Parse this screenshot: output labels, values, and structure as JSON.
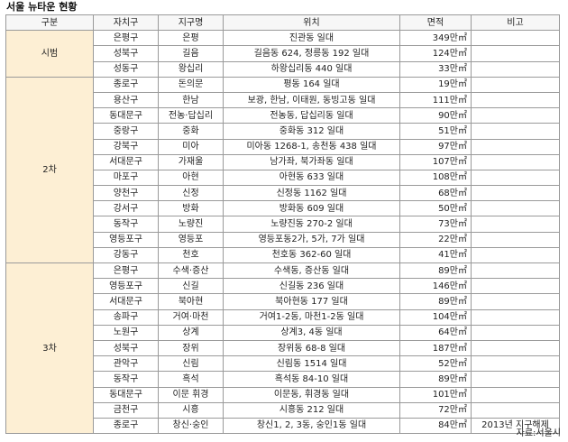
{
  "title": "서울 뉴타운 현황",
  "headers": [
    "구분",
    "자치구",
    "지구명",
    "위치",
    "면적",
    "비고"
  ],
  "groups": [
    {
      "label": "시범",
      "rows": [
        {
          "gu": "은평구",
          "district": "은평",
          "location": "진관동 일대",
          "area": "349만㎡",
          "note": ""
        },
        {
          "gu": "성북구",
          "district": "길음",
          "location": "길음동 624, 정릉동 192 일대",
          "area": "124만㎡",
          "note": ""
        },
        {
          "gu": "성동구",
          "district": "왕십리",
          "location": "하왕십리동 440 일대",
          "area": "33만㎡",
          "note": ""
        }
      ]
    },
    {
      "label": "2차",
      "rows": [
        {
          "gu": "종로구",
          "district": "돈의문",
          "location": "평동 164 일대",
          "area": "19만㎡",
          "note": ""
        },
        {
          "gu": "용산구",
          "district": "한남",
          "location": "보광, 한남, 이태원, 동빙고동 일대",
          "area": "111만㎡",
          "note": ""
        },
        {
          "gu": "동대문구",
          "district": "전농·답십리",
          "location": "전농동, 답십리동 일대",
          "area": "90만㎡",
          "note": ""
        },
        {
          "gu": "중랑구",
          "district": "중화",
          "location": "중화동 312 일대",
          "area": "51만㎡",
          "note": ""
        },
        {
          "gu": "강북구",
          "district": "미아",
          "location": "미아동 1268-1, 송천동 438 일대",
          "area": "97만㎡",
          "note": ""
        },
        {
          "gu": "서대문구",
          "district": "가재울",
          "location": "남가좌, 북가좌동 일대",
          "area": "107만㎡",
          "note": ""
        },
        {
          "gu": "마포구",
          "district": "아현",
          "location": "아현동 633 일대",
          "area": "108만㎡",
          "note": ""
        },
        {
          "gu": "양천구",
          "district": "신정",
          "location": "신정동 1162 일대",
          "area": "68만㎡",
          "note": ""
        },
        {
          "gu": "강서구",
          "district": "방화",
          "location": "방화동 609 일대",
          "area": "50만㎡",
          "note": ""
        },
        {
          "gu": "동작구",
          "district": "노량진",
          "location": "노량진동 270-2 일대",
          "area": "73만㎡",
          "note": ""
        },
        {
          "gu": "영등포구",
          "district": "영등포",
          "location": "영등포동2가, 5가, 7가 일대",
          "area": "22만㎡",
          "note": ""
        },
        {
          "gu": "강동구",
          "district": "천호",
          "location": "천호동 362-60 일대",
          "area": "41만㎡",
          "note": ""
        }
      ]
    },
    {
      "label": "3차",
      "rows": [
        {
          "gu": "은평구",
          "district": "수색·증산",
          "location": "수색동, 증산동 일대",
          "area": "89만㎡",
          "note": ""
        },
        {
          "gu": "영등포구",
          "district": "신길",
          "location": "신길동 236 일대",
          "area": "146만㎡",
          "note": ""
        },
        {
          "gu": "서대문구",
          "district": "북아현",
          "location": "북아현동 177 일대",
          "area": "89만㎡",
          "note": ""
        },
        {
          "gu": "송파구",
          "district": "거여·마천",
          "location": "거여1-2동, 마천1-2동 일대",
          "area": "104만㎡",
          "note": ""
        },
        {
          "gu": "노원구",
          "district": "상계",
          "location": "상계3, 4동 일대",
          "area": "64만㎡",
          "note": ""
        },
        {
          "gu": "성북구",
          "district": "장위",
          "location": "장위동 68-8 일대",
          "area": "187만㎡",
          "note": ""
        },
        {
          "gu": "관악구",
          "district": "신림",
          "location": "신림동 1514 일대",
          "area": "52만㎡",
          "note": ""
        },
        {
          "gu": "동작구",
          "district": "흑석",
          "location": "흑석동 84-10 일대",
          "area": "89만㎡",
          "note": ""
        },
        {
          "gu": "동대문구",
          "district": "이문 휘경",
          "location": "이문동, 휘경동 일대",
          "area": "101만㎡",
          "note": ""
        },
        {
          "gu": "금천구",
          "district": "시흥",
          "location": "시흥동 212 일대",
          "area": "72만㎡",
          "note": ""
        },
        {
          "gu": "종로구",
          "district": "창신·숭인",
          "location": "창신1, 2, 3동, 숭인1동 일대",
          "area": "84만㎡",
          "note": "2013년 지구해제"
        }
      ]
    }
  ],
  "source": "자료:서울시"
}
